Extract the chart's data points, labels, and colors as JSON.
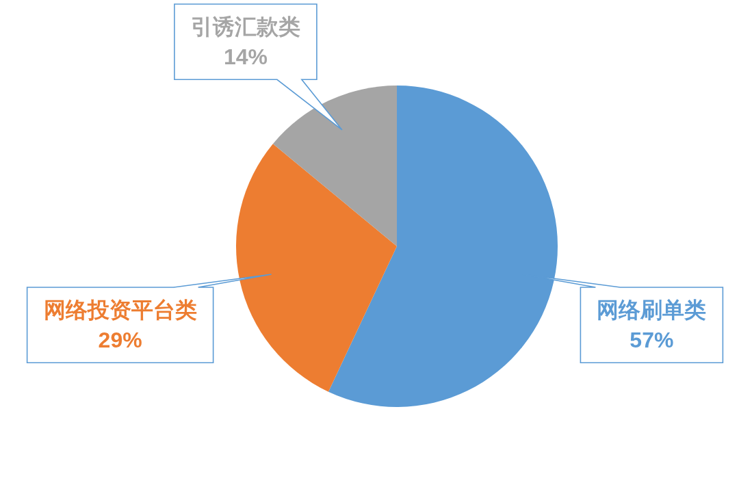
{
  "chart_data": {
    "type": "pie",
    "categories": [
      "网络刷单类",
      "网络投资平台类",
      "引诱汇款类"
    ],
    "values": [
      57,
      29,
      14
    ],
    "colors": [
      "#5b9bd5",
      "#ed7d31",
      "#a5a5a5"
    ],
    "value_labels": [
      "57%",
      "29%",
      "14%"
    ]
  }
}
